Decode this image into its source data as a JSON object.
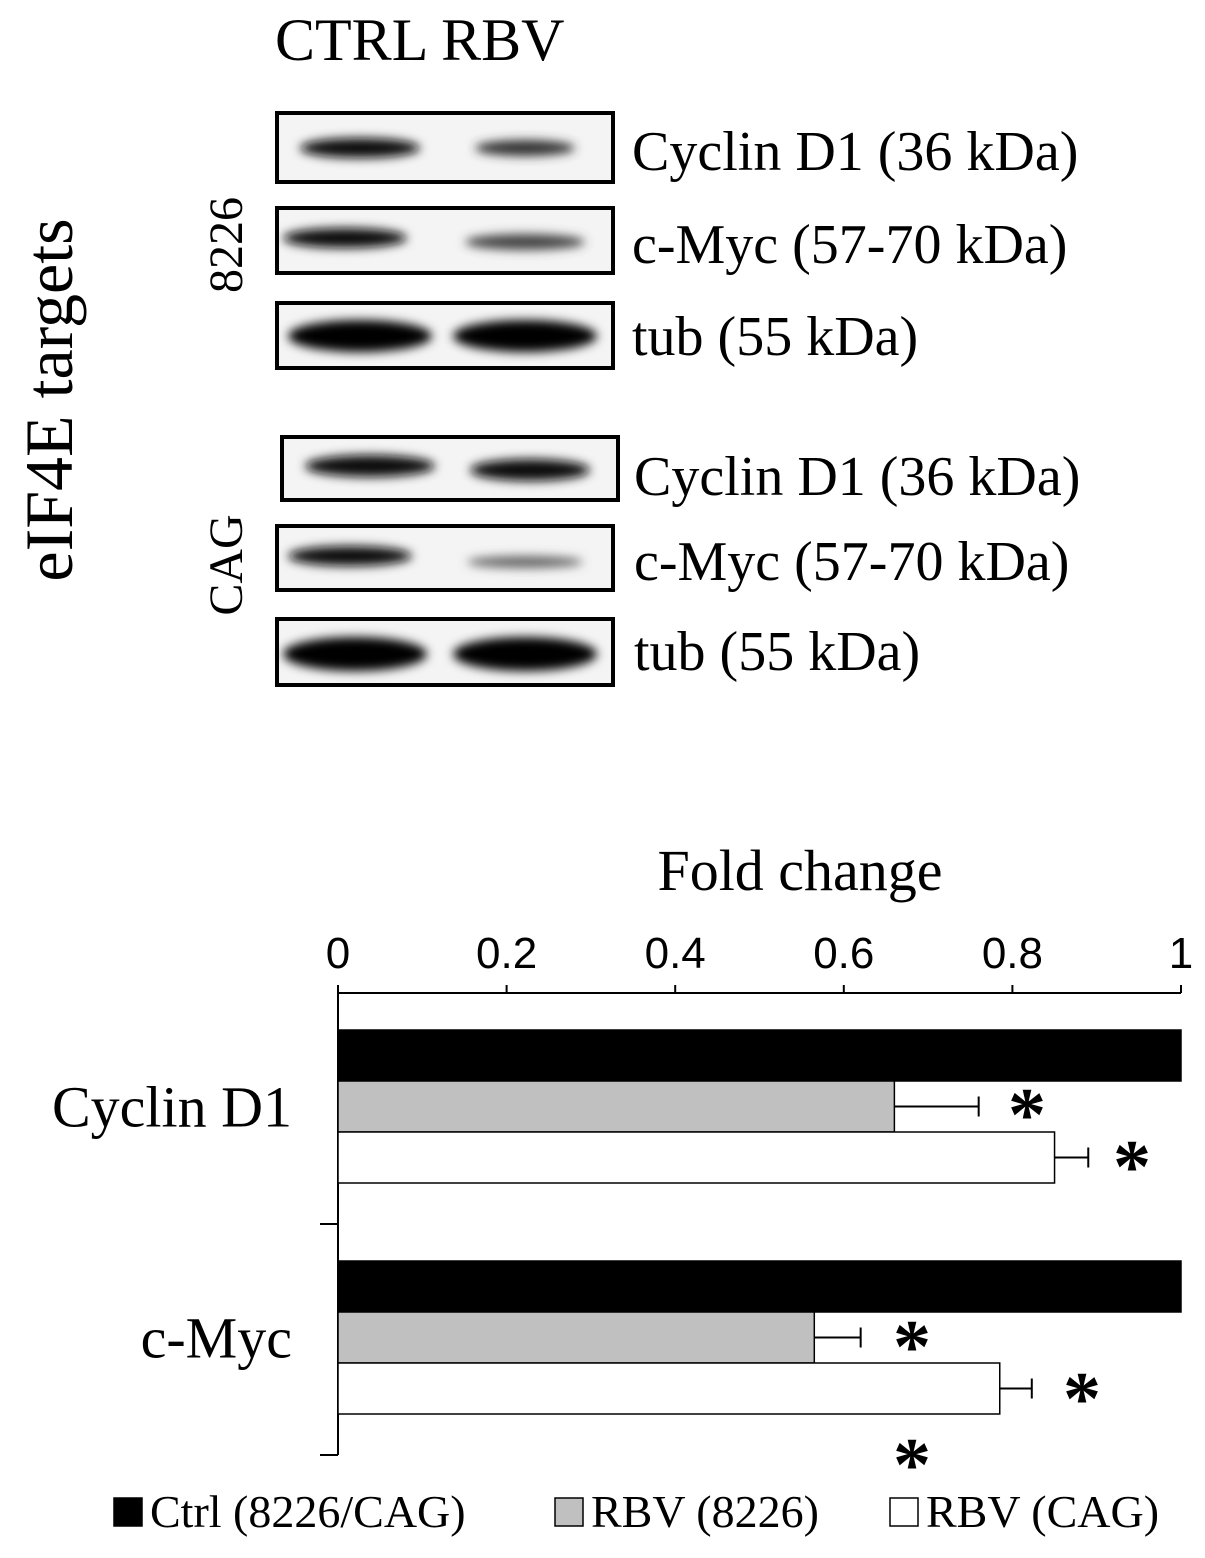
{
  "blot": {
    "lanes": "CTRL RBV",
    "side_label": "eIF4E targets",
    "groups": [
      {
        "name": "8226",
        "bands": [
          "Cyclin D1 (36 kDa)",
          "c-Myc (57-70 kDa)",
          "tub (55 kDa)"
        ]
      },
      {
        "name": "CAG",
        "bands": [
          "Cyclin D1 (36 kDa)",
          "c-Myc (57-70 kDa)",
          "tub (55 kDa)"
        ]
      }
    ]
  },
  "chart_data": {
    "type": "hbar",
    "x_label": "Fold change",
    "categories": [
      "Cyclin D1",
      "c-Myc"
    ],
    "series": [
      {
        "name": "Ctrl (8226/CAG)",
        "color": "#000000",
        "values": [
          1,
          1
        ]
      },
      {
        "name": "RBV (8226)",
        "color": "#c0c0c0",
        "values": [
          0.66,
          0.565
        ],
        "errors": [
          0.1,
          0.055
        ]
      },
      {
        "name": "RBV (CAG)",
        "color": "#ffffff",
        "values": [
          0.85,
          0.785
        ],
        "errors": [
          0.04,
          0.038
        ]
      }
    ],
    "annotations": [
      "*",
      "*",
      "*",
      "*",
      "*"
    ],
    "xlim": [
      0,
      1
    ],
    "xticks": [
      0,
      0.2,
      0.4,
      0.6,
      0.8,
      1
    ]
  }
}
